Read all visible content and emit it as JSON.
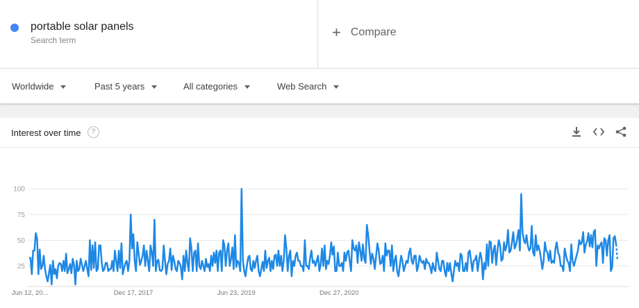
{
  "search_term": {
    "name": "portable solar panels",
    "subtitle": "Search term",
    "color": "#4285f4"
  },
  "compare": {
    "label": "Compare"
  },
  "filters": {
    "region": "Worldwide",
    "time": "Past 5 years",
    "category": "All categories",
    "property": "Web Search"
  },
  "panel": {
    "title": "Interest over time",
    "help_icon": "?"
  },
  "icons": {
    "download": "download-icon",
    "embed": "embed-code-icon",
    "share": "share-icon"
  },
  "chart_data": {
    "type": "line",
    "title": "",
    "xlabel": "",
    "ylabel": "",
    "ylim": [
      0,
      100
    ],
    "yticks": [
      25,
      50,
      75,
      100
    ],
    "xtick_labels": [
      "Jun 12, 20...",
      "Dec 17, 2017",
      "Jun 23, 2019",
      "Dec 27, 2020"
    ],
    "xtick_index": [
      0,
      79,
      157,
      235
    ],
    "color": "#1e88e5",
    "partial_tail_points": 1,
    "series": [
      {
        "values": [
          33,
          33,
          17,
          40,
          40,
          57,
          52,
          17,
          41,
          22,
          25,
          35,
          22,
          15,
          10,
          18,
          26,
          7,
          30,
          17,
          22,
          13,
          25,
          28,
          27,
          20,
          30,
          20,
          37,
          18,
          22,
          27,
          18,
          32,
          26,
          7,
          30,
          20,
          22,
          32,
          26,
          20,
          25,
          30,
          22,
          15,
          50,
          21,
          45,
          23,
          48,
          20,
          22,
          45,
          45,
          28,
          20,
          22,
          28,
          28,
          20,
          22,
          22,
          30,
          20,
          40,
          30,
          20,
          40,
          23,
          47,
          17,
          23,
          28,
          30,
          20,
          30,
          75,
          42,
          56,
          30,
          20,
          48,
          37,
          26,
          30,
          35,
          45,
          25,
          40,
          30,
          20,
          45,
          38,
          25,
          70,
          20,
          30,
          31,
          21,
          20,
          22,
          45,
          30,
          17,
          27,
          30,
          42,
          21,
          35,
          30,
          22,
          20,
          30,
          28,
          24,
          12,
          35,
          20,
          40,
          28,
          20,
          52,
          42,
          20,
          38,
          40,
          20,
          47,
          25,
          22,
          30,
          25,
          20,
          32,
          24,
          27,
          20,
          35,
          25,
          38,
          28,
          40,
          20,
          38,
          40,
          20,
          50,
          45,
          25,
          40,
          47,
          25,
          32,
          43,
          22,
          55,
          24,
          30,
          28,
          20,
          100,
          30,
          20,
          15,
          25,
          33,
          35,
          22,
          20,
          30,
          23,
          30,
          35,
          20,
          15,
          22,
          29,
          20,
          40,
          23,
          30,
          33,
          20,
          30,
          22,
          35,
          36,
          25,
          40,
          25,
          35,
          20,
          30,
          55,
          42,
          20,
          35,
          40,
          15,
          30,
          25,
          35,
          38,
          30,
          30,
          25,
          25,
          20,
          50,
          25,
          25,
          22,
          33,
          40,
          28,
          30,
          25,
          30,
          35,
          20,
          26,
          42,
          25,
          45,
          22,
          30,
          27,
          35,
          48,
          36,
          44,
          20,
          20,
          38,
          25,
          25,
          28,
          20,
          38,
          30,
          38,
          40,
          30,
          20,
          50,
          42,
          40,
          45,
          28,
          48,
          40,
          30,
          46,
          32,
          28,
          65,
          55,
          40,
          27,
          37,
          32,
          22,
          35,
          47,
          40,
          27,
          28,
          35,
          20,
          47,
          35,
          40,
          40,
          25,
          45,
          20,
          30,
          35,
          20,
          15,
          25,
          35,
          30,
          20,
          25,
          30,
          28,
          38,
          42,
          30,
          27,
          35,
          35,
          20,
          25,
          35,
          30,
          28,
          30,
          22,
          32,
          28,
          28,
          24,
          18,
          28,
          22,
          20,
          38,
          30,
          22,
          20,
          30,
          30,
          20,
          15,
          28,
          20,
          28,
          18,
          10,
          20,
          30,
          25,
          28,
          20,
          37,
          35,
          20,
          20,
          28,
          20,
          38,
          40,
          30,
          20,
          30,
          31,
          35,
          20,
          30,
          38,
          32,
          12,
          28,
          22,
          46,
          25,
          49,
          48,
          28,
          40,
          45,
          26,
          40,
          50,
          45,
          30,
          32,
          48,
          40,
          45,
          60,
          38,
          40,
          48,
          58,
          42,
          45,
          52,
          60,
          40,
          95,
          58,
          50,
          47,
          55,
          45,
          40,
          42,
          64,
          38,
          35,
          55,
          40,
          45,
          40,
          32,
          22,
          30,
          48,
          40,
          38,
          30,
          40,
          28,
          30,
          28,
          42,
          48,
          38,
          35,
          25,
          25,
          20,
          42,
          35,
          30,
          28,
          20,
          46,
          30,
          25,
          30,
          35,
          40,
          50,
          46,
          48,
          58,
          38,
          46,
          49,
          57,
          44,
          55,
          43,
          58,
          60,
          25,
          45,
          42,
          46,
          48,
          28,
          52,
          50,
          35,
          50,
          55,
          20,
          24,
          52,
          54,
          46,
          30
        ]
      }
    ]
  }
}
